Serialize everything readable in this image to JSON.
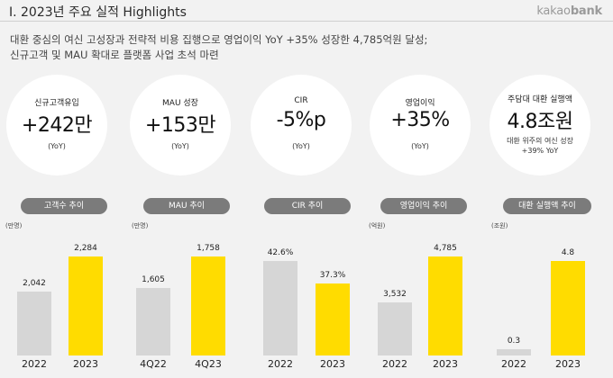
{
  "header": {
    "title": "I. 2023년 주요 실적 Highlights",
    "brand_light": "kakao",
    "brand_bold": "bank"
  },
  "summary": {
    "line1": "대환 중심의 여신 고성장과 전략적 비용 집행으로 영업이익 YoY +35% 성장한 4,785억원 달성;",
    "line2": "신규고객 및 MAU 확대로 플랫폼 사업 초석 마련"
  },
  "kpis": [
    {
      "label": "신규고객유입",
      "value": "+242만",
      "note": "(YoY)"
    },
    {
      "label": "MAU 성장",
      "value": "+153만",
      "note": "(YoY)"
    },
    {
      "label": "CIR",
      "value": "-5%p",
      "note": "(YoY)"
    },
    {
      "label": "영업이익",
      "value": "+35%",
      "note": "(YoY)"
    },
    {
      "label": "주담대 대환 실행액",
      "value": "4.8조원",
      "note": "대환 위주의 여신 성장",
      "note2": "+39% YoY"
    }
  ],
  "colors": {
    "prior": "#d6d6d6",
    "current": "#ffdc00",
    "pill": "#7b7b7b"
  },
  "chart_data": [
    {
      "type": "bar",
      "title": "고객수 추이",
      "unit": "(만명)",
      "categories": [
        "2022",
        "2023"
      ],
      "values": [
        2042,
        2284
      ],
      "labels": [
        "2,042",
        "2,284"
      ]
    },
    {
      "type": "bar",
      "title": "MAU 추이",
      "unit": "(만명)",
      "categories": [
        "4Q22",
        "4Q23"
      ],
      "values": [
        1605,
        1758
      ],
      "labels": [
        "1,605",
        "1,758"
      ]
    },
    {
      "type": "bar",
      "title": "CIR 추이",
      "unit": "",
      "categories": [
        "2022",
        "2023"
      ],
      "values": [
        42.6,
        37.3
      ],
      "labels": [
        "42.6%",
        "37.3%"
      ]
    },
    {
      "type": "bar",
      "title": "영업이익 추이",
      "unit": "(억원)",
      "categories": [
        "2022",
        "2023"
      ],
      "values": [
        3532,
        4785
      ],
      "labels": [
        "3,532",
        "4,785"
      ]
    },
    {
      "type": "bar",
      "title": "대환 실행액 추이",
      "unit": "(조원)",
      "categories": [
        "2022",
        "2023"
      ],
      "values": [
        0.3,
        4.8
      ],
      "labels": [
        "0.3",
        "4.8"
      ]
    }
  ]
}
